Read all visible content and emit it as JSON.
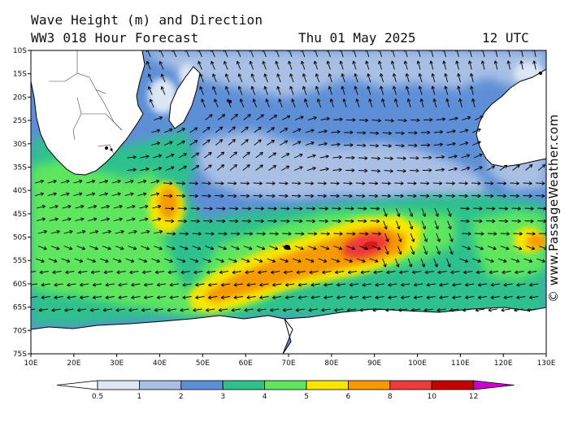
{
  "header": {
    "title_line1": "Wave Height (m) and Direction",
    "title_line2": "WW3 018 Hour Forecast",
    "date": "Thu 01 May 2025",
    "time": "12 UTC"
  },
  "credit": "© www.PassageWeather.com",
  "axes": {
    "lat_labels": [
      "10S",
      "15S",
      "20S",
      "25S",
      "30S",
      "35S",
      "40S",
      "45S",
      "50S",
      "55S",
      "60S",
      "65S",
      "70S",
      "75S"
    ],
    "lon_labels": [
      "10E",
      "20E",
      "30E",
      "40E",
      "50E",
      "60E",
      "70E",
      "80E",
      "90E",
      "100E",
      "110E",
      "120E",
      "130E"
    ]
  },
  "colorbar": {
    "labels": [
      "0.5",
      "1",
      "2",
      "3",
      "4",
      "5",
      "6",
      "8",
      "10",
      "12"
    ],
    "colors": [
      "#ffffff",
      "#dce6f5",
      "#a9bfe4",
      "#5e8fd6",
      "#2fc08e",
      "#5ee65e",
      "#f6e600",
      "#f59a00",
      "#ee3a3a",
      "#c40000",
      "#cc00cc"
    ]
  },
  "map": {
    "colors": {
      "ocean_low": "#a9bfe4",
      "ocean_mid": "#5e8fd6",
      "ocean_teal": "#2fc08e",
      "ocean_green": "#5ee65e",
      "ocean_yellow": "#f6e600",
      "ocean_orange": "#f59a00",
      "ocean_red": "#ee3a3a",
      "land": "#ffffff",
      "coast": "#000000"
    }
  }
}
